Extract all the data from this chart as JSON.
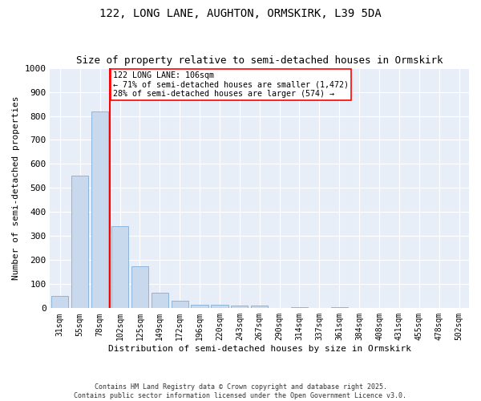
{
  "title1": "122, LONG LANE, AUGHTON, ORMSKIRK, L39 5DA",
  "title2": "Size of property relative to semi-detached houses in Ormskirk",
  "xlabel": "Distribution of semi-detached houses by size in Ormskirk",
  "ylabel": "Number of semi-detached properties",
  "categories": [
    "31sqm",
    "55sqm",
    "78sqm",
    "102sqm",
    "125sqm",
    "149sqm",
    "172sqm",
    "196sqm",
    "220sqm",
    "243sqm",
    "267sqm",
    "290sqm",
    "314sqm",
    "337sqm",
    "361sqm",
    "384sqm",
    "408sqm",
    "431sqm",
    "455sqm",
    "478sqm",
    "502sqm"
  ],
  "values": [
    52,
    550,
    820,
    340,
    175,
    65,
    30,
    15,
    13,
    10,
    10,
    0,
    5,
    0,
    5,
    0,
    0,
    0,
    0,
    0,
    0
  ],
  "bar_color": "#c8d9ee",
  "bar_edge_color": "#8db4d8",
  "property_size": "106sqm",
  "pct_smaller": 71,
  "count_smaller": 1472,
  "pct_larger": 28,
  "count_larger": 574,
  "annot_line_color": "red",
  "box_color": "red",
  "ylim": [
    0,
    1000
  ],
  "yticks": [
    0,
    100,
    200,
    300,
    400,
    500,
    600,
    700,
    800,
    900,
    1000
  ],
  "footer": "Contains HM Land Registry data © Crown copyright and database right 2025.\nContains public sector information licensed under the Open Government Licence v3.0.",
  "bg_color": "#ffffff",
  "plot_bg_color": "#e8eef8",
  "grid_color": "#ffffff",
  "title_fontsize": 10,
  "subtitle_fontsize": 9
}
